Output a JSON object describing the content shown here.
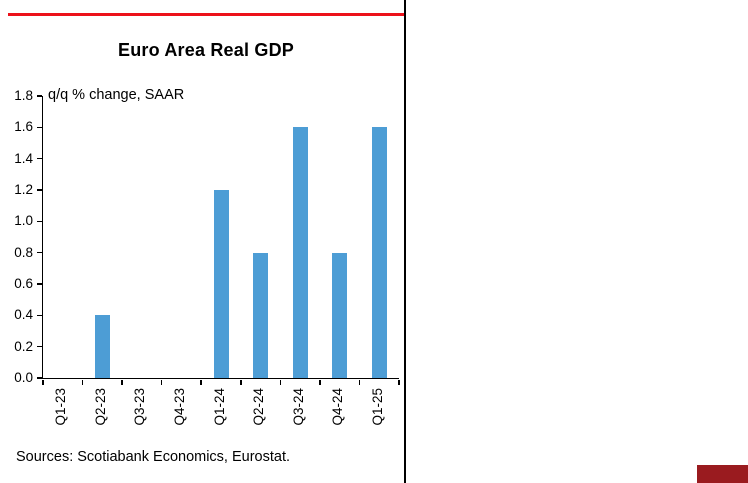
{
  "colors": {
    "accent_red": "#EC111A",
    "bar_blue": "#4D9DD5",
    "corner_red": "#9A1B1F",
    "axis_black": "#000000"
  },
  "chart_data": {
    "type": "bar",
    "title": "Euro Area Real GDP",
    "subtitle": "q/q % change, SAAR",
    "categories": [
      "Q1-23",
      "Q2-23",
      "Q3-23",
      "Q4-23",
      "Q1-24",
      "Q2-24",
      "Q3-24",
      "Q4-24",
      "Q1-25"
    ],
    "values": [
      0.0,
      0.4,
      0.0,
      0.0,
      1.2,
      0.8,
      1.6,
      0.8,
      1.6
    ],
    "xlabel": "",
    "ylabel": "",
    "ylim": [
      0,
      1.8
    ],
    "ytick_step": 0.2,
    "grid": false,
    "legend_position": "none",
    "source": "Sources: Scotiabank Economics, Eurostat."
  }
}
